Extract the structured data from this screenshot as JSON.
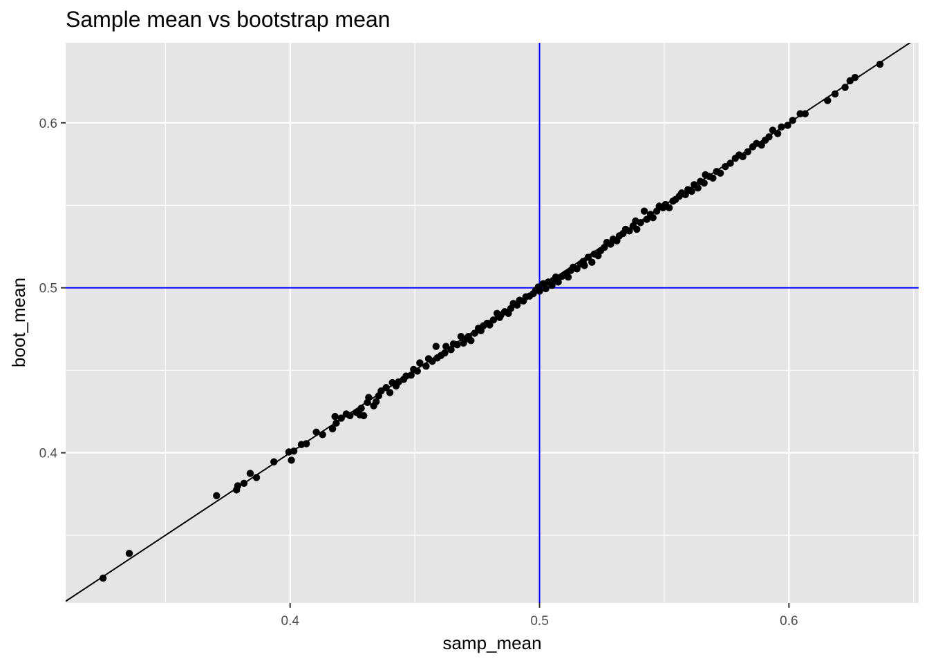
{
  "chart_data": {
    "type": "scatter",
    "title": "Sample mean vs bootstrap mean",
    "xlabel": "samp_mean",
    "ylabel": "boot_mean",
    "xlim": [
      0.31,
      0.652
    ],
    "ylim": [
      0.309,
      0.6485
    ],
    "x_ticks": [
      0.4,
      0.5,
      0.6
    ],
    "x_tick_labels": [
      "0.4",
      "0.5",
      "0.6"
    ],
    "x_minor_ticks": [
      0.35,
      0.45,
      0.55,
      0.65
    ],
    "y_ticks": [
      0.4,
      0.5,
      0.6
    ],
    "y_tick_labels": [
      "0.4",
      "0.5",
      "0.6"
    ],
    "y_minor_ticks": [
      0.35,
      0.45,
      0.55
    ],
    "grid": true,
    "panel_background": "#e5e5e5",
    "grid_color": "#ffffff",
    "point_color": "#000000",
    "reference_lines": {
      "identity": {
        "slope": 1,
        "intercept": 0,
        "color": "#000000"
      },
      "vline": {
        "x": 0.5,
        "color": "#0000ff"
      },
      "hline": {
        "y": 0.5,
        "color": "#0000ff"
      }
    },
    "points": [
      [
        0.325,
        0.324
      ],
      [
        0.3355,
        0.339
      ],
      [
        0.3705,
        0.374
      ],
      [
        0.3785,
        0.3775
      ],
      [
        0.379,
        0.38
      ],
      [
        0.3815,
        0.3815
      ],
      [
        0.384,
        0.3875
      ],
      [
        0.3865,
        0.385
      ],
      [
        0.3935,
        0.3945
      ],
      [
        0.3995,
        0.4005
      ],
      [
        0.4005,
        0.3955
      ],
      [
        0.4015,
        0.401
      ],
      [
        0.4045,
        0.405
      ],
      [
        0.4065,
        0.4055
      ],
      [
        0.4105,
        0.4125
      ],
      [
        0.413,
        0.411
      ],
      [
        0.417,
        0.4145
      ],
      [
        0.418,
        0.422
      ],
      [
        0.4185,
        0.418
      ],
      [
        0.4205,
        0.421
      ],
      [
        0.4225,
        0.4235
      ],
      [
        0.424,
        0.4225
      ],
      [
        0.4265,
        0.4245
      ],
      [
        0.428,
        0.423
      ],
      [
        0.4285,
        0.427
      ],
      [
        0.4295,
        0.4225
      ],
      [
        0.431,
        0.4305
      ],
      [
        0.4315,
        0.4335
      ],
      [
        0.4335,
        0.4285
      ],
      [
        0.4345,
        0.431
      ],
      [
        0.4355,
        0.4345
      ],
      [
        0.4365,
        0.4375
      ],
      [
        0.4385,
        0.4395
      ],
      [
        0.44,
        0.4365
      ],
      [
        0.441,
        0.4425
      ],
      [
        0.4425,
        0.4405
      ],
      [
        0.4435,
        0.443
      ],
      [
        0.4455,
        0.4445
      ],
      [
        0.4465,
        0.4465
      ],
      [
        0.4485,
        0.447
      ],
      [
        0.4495,
        0.4505
      ],
      [
        0.451,
        0.4495
      ],
      [
        0.452,
        0.4545
      ],
      [
        0.4545,
        0.4525
      ],
      [
        0.4555,
        0.457
      ],
      [
        0.457,
        0.4555
      ],
      [
        0.4585,
        0.4645
      ],
      [
        0.459,
        0.4575
      ],
      [
        0.4605,
        0.459
      ],
      [
        0.462,
        0.4605
      ],
      [
        0.4625,
        0.4645
      ],
      [
        0.4645,
        0.4625
      ],
      [
        0.4655,
        0.466
      ],
      [
        0.467,
        0.4655
      ],
      [
        0.4685,
        0.4705
      ],
      [
        0.4695,
        0.4665
      ],
      [
        0.4705,
        0.469
      ],
      [
        0.4715,
        0.4705
      ],
      [
        0.4725,
        0.468
      ],
      [
        0.474,
        0.4725
      ],
      [
        0.4755,
        0.4755
      ],
      [
        0.4765,
        0.474
      ],
      [
        0.4775,
        0.477
      ],
      [
        0.479,
        0.4785
      ],
      [
        0.48,
        0.4775
      ],
      [
        0.4815,
        0.4805
      ],
      [
        0.483,
        0.4845
      ],
      [
        0.484,
        0.482
      ],
      [
        0.4845,
        0.4835
      ],
      [
        0.486,
        0.4855
      ],
      [
        0.4875,
        0.4845
      ],
      [
        0.4885,
        0.4875
      ],
      [
        0.4895,
        0.4905
      ],
      [
        0.491,
        0.4895
      ],
      [
        0.492,
        0.4925
      ],
      [
        0.4935,
        0.492
      ],
      [
        0.4945,
        0.4945
      ],
      [
        0.496,
        0.495
      ],
      [
        0.4975,
        0.4965
      ],
      [
        0.4985,
        0.4985
      ],
      [
        0.4995,
        0.5005
      ],
      [
        0.5,
        0.498
      ],
      [
        0.5015,
        0.5025
      ],
      [
        0.5025,
        0.4995
      ],
      [
        0.5035,
        0.5035
      ],
      [
        0.505,
        0.5015
      ],
      [
        0.5055,
        0.5045
      ],
      [
        0.5065,
        0.5065
      ],
      [
        0.5075,
        0.5035
      ],
      [
        0.509,
        0.507
      ],
      [
        0.5105,
        0.5085
      ],
      [
        0.5115,
        0.5065
      ],
      [
        0.5125,
        0.5105
      ],
      [
        0.5135,
        0.5125
      ],
      [
        0.515,
        0.5115
      ],
      [
        0.5165,
        0.5145
      ],
      [
        0.5175,
        0.516
      ],
      [
        0.518,
        0.5135
      ],
      [
        0.5195,
        0.5185
      ],
      [
        0.521,
        0.5155
      ],
      [
        0.522,
        0.5205
      ],
      [
        0.5235,
        0.5195
      ],
      [
        0.5245,
        0.5225
      ],
      [
        0.526,
        0.5245
      ],
      [
        0.527,
        0.5275
      ],
      [
        0.5285,
        0.5265
      ],
      [
        0.5295,
        0.5295
      ],
      [
        0.531,
        0.5285
      ],
      [
        0.532,
        0.5315
      ],
      [
        0.5335,
        0.533
      ],
      [
        0.5345,
        0.5355
      ],
      [
        0.536,
        0.5345
      ],
      [
        0.5375,
        0.5375
      ],
      [
        0.5385,
        0.5405
      ],
      [
        0.539,
        0.5355
      ],
      [
        0.5405,
        0.5395
      ],
      [
        0.542,
        0.5465
      ],
      [
        0.543,
        0.5415
      ],
      [
        0.5445,
        0.5445
      ],
      [
        0.5455,
        0.5425
      ],
      [
        0.547,
        0.5465
      ],
      [
        0.548,
        0.5495
      ],
      [
        0.5495,
        0.5485
      ],
      [
        0.5505,
        0.5505
      ],
      [
        0.552,
        0.5485
      ],
      [
        0.5535,
        0.5525
      ],
      [
        0.5545,
        0.5535
      ],
      [
        0.556,
        0.5555
      ],
      [
        0.557,
        0.5575
      ],
      [
        0.5585,
        0.5565
      ],
      [
        0.5595,
        0.5595
      ],
      [
        0.561,
        0.5585
      ],
      [
        0.562,
        0.5625
      ],
      [
        0.5635,
        0.5605
      ],
      [
        0.5645,
        0.5645
      ],
      [
        0.566,
        0.5635
      ],
      [
        0.5665,
        0.5685
      ],
      [
        0.568,
        0.5675
      ],
      [
        0.5695,
        0.5665
      ],
      [
        0.571,
        0.5705
      ],
      [
        0.5725,
        0.5695
      ],
      [
        0.5745,
        0.5735
      ],
      [
        0.5765,
        0.5755
      ],
      [
        0.5785,
        0.5785
      ],
      [
        0.58,
        0.5805
      ],
      [
        0.5815,
        0.5795
      ],
      [
        0.5835,
        0.5825
      ],
      [
        0.5855,
        0.5855
      ],
      [
        0.587,
        0.5875
      ],
      [
        0.589,
        0.5865
      ],
      [
        0.5905,
        0.5895
      ],
      [
        0.592,
        0.5915
      ],
      [
        0.5935,
        0.5955
      ],
      [
        0.5955,
        0.5935
      ],
      [
        0.597,
        0.5975
      ],
      [
        0.5995,
        0.5985
      ],
      [
        0.6015,
        0.6015
      ],
      [
        0.6045,
        0.6055
      ],
      [
        0.6065,
        0.6055
      ],
      [
        0.6155,
        0.6135
      ],
      [
        0.6185,
        0.6175
      ],
      [
        0.6225,
        0.6215
      ],
      [
        0.6245,
        0.6255
      ],
      [
        0.6265,
        0.6275
      ],
      [
        0.6365,
        0.6355
      ]
    ]
  }
}
